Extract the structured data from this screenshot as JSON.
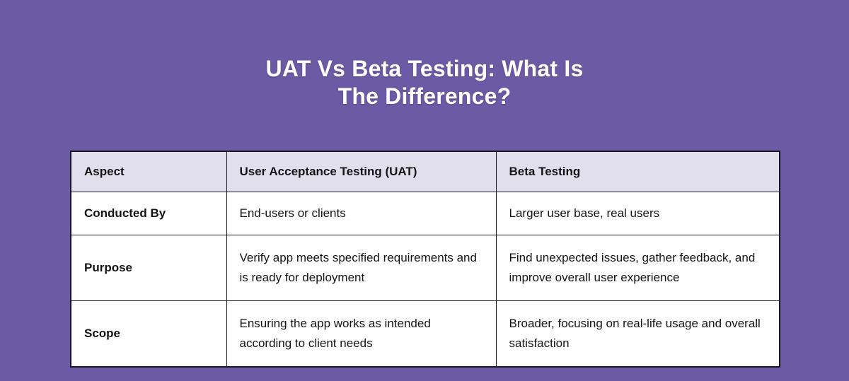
{
  "page": {
    "background_color": "#6D5AA4",
    "title_color": "#FFFFFF",
    "title_line1": "UAT Vs Beta Testing: What Is",
    "title_line2": "The Difference?"
  },
  "table": {
    "header_bg": "#E2DFED",
    "body_bg": "#FFFFFF",
    "border_color": "#1A1626",
    "columns": [
      "Aspect",
      "User Acceptance Testing (UAT)",
      "Beta Testing"
    ],
    "rows": [
      {
        "aspect": "Conducted By",
        "uat": "End-users or clients",
        "beta": "Larger user base, real users"
      },
      {
        "aspect": "Purpose",
        "uat": "Verify app meets specified requirements and is ready for deployment",
        "beta": "Find unexpected issues, gather feedback, and improve overall user experience"
      },
      {
        "aspect": "Scope",
        "uat": "Ensuring the app works as intended according to client needs",
        "beta": "Broader, focusing on real-life usage and overall satisfaction"
      }
    ]
  }
}
